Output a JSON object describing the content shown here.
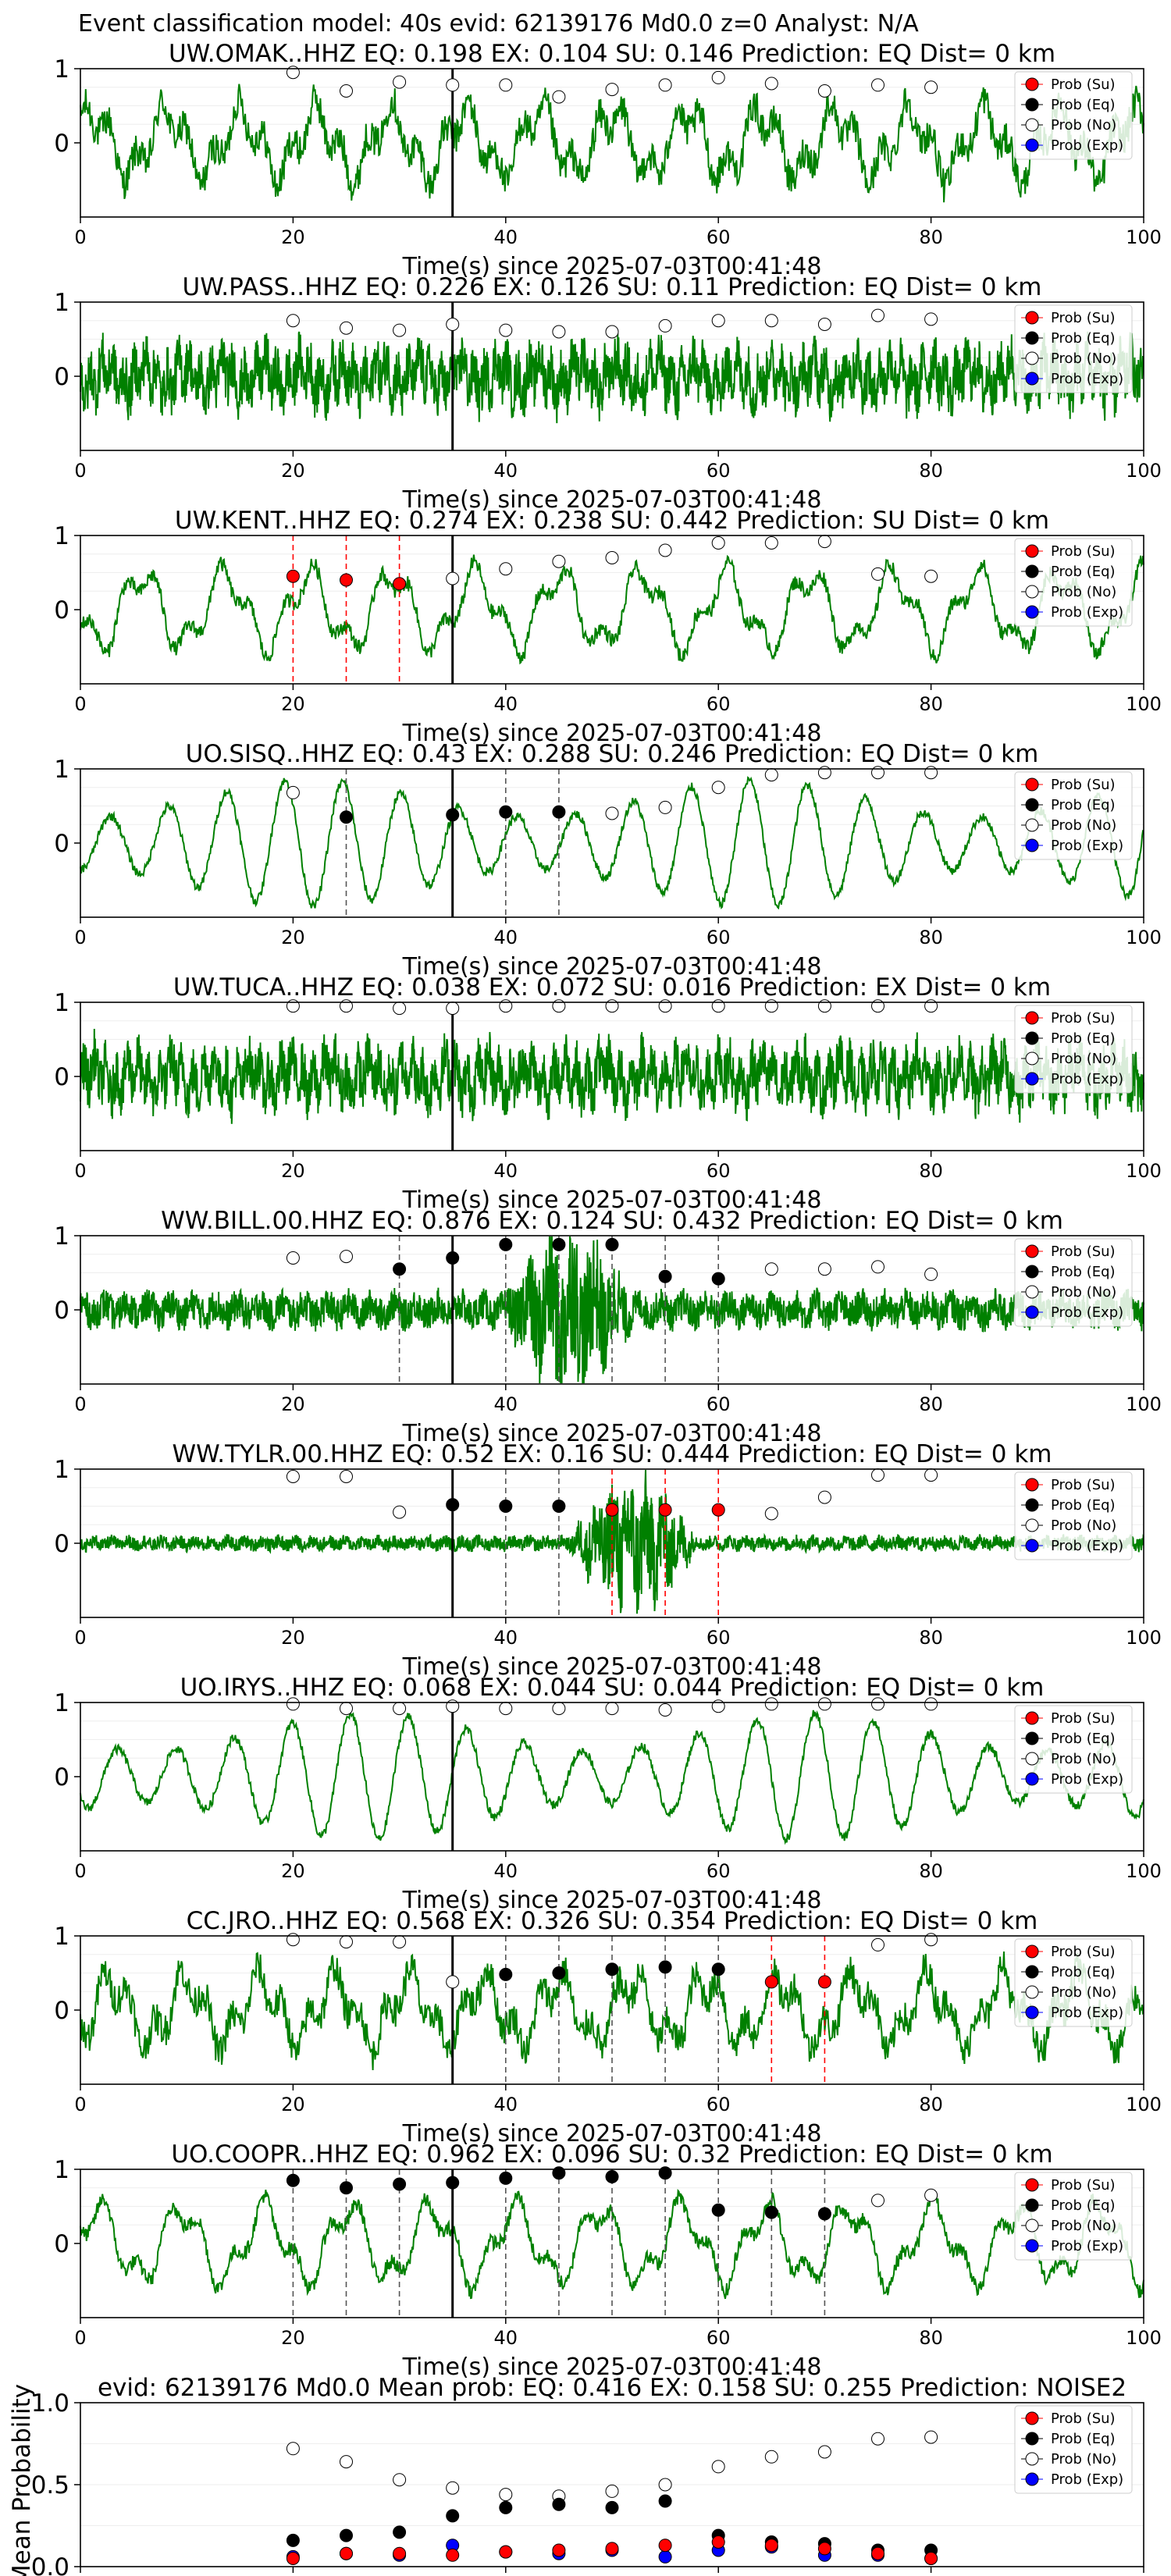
{
  "figure": {
    "title": "Event classification model: 40s evid: 62139176 Md0.0 z=0 Analyst: N/A",
    "x_axis_label": "Time(s) since 2025-07-03T00:41:48",
    "legend": [
      "Prob (Su)",
      "Prob (Eq)",
      "Prob (No)",
      "Prob (Exp)"
    ],
    "colors": {
      "trace": "#008000",
      "su": "#ff0000",
      "eq": "#000000",
      "no": "#ffffff",
      "exp": "#0000ff",
      "vline_eq": "#555555",
      "vline_su": "#ff0000"
    }
  },
  "chart_data": [
    {
      "type": "line",
      "station": "UW.OMAK..HHZ",
      "title": "UW.OMAK..HHZ   EQ: 0.198  EX: 0.104  SU: 0.146   Prediction: EQ    Dist= 0 km",
      "xlim": [
        0,
        100
      ],
      "ylim": [
        -1,
        1
      ],
      "xticks": [
        0,
        20,
        40,
        60,
        80,
        100
      ],
      "yticks": [
        0,
        1
      ],
      "trace_style": "noise",
      "arrival": 35,
      "windows": [
        {
          "x": 20,
          "cls": "no",
          "p": 0.95
        },
        {
          "x": 25,
          "cls": "no",
          "p": 0.7
        },
        {
          "x": 30,
          "cls": "no",
          "p": 0.82
        },
        {
          "x": 35,
          "cls": "no",
          "p": 0.78
        },
        {
          "x": 40,
          "cls": "no",
          "p": 0.78
        },
        {
          "x": 45,
          "cls": "no",
          "p": 0.62
        },
        {
          "x": 50,
          "cls": "no",
          "p": 0.72
        },
        {
          "x": 55,
          "cls": "no",
          "p": 0.78
        },
        {
          "x": 60,
          "cls": "no",
          "p": 0.88
        },
        {
          "x": 65,
          "cls": "no",
          "p": 0.8
        },
        {
          "x": 70,
          "cls": "no",
          "p": 0.7
        },
        {
          "x": 75,
          "cls": "no",
          "p": 0.78
        },
        {
          "x": 80,
          "cls": "no",
          "p": 0.75
        }
      ]
    },
    {
      "type": "line",
      "station": "UW.PASS..HHZ",
      "title": "UW.PASS..HHZ   EQ: 0.226  EX: 0.126  SU: 0.11   Prediction: EQ    Dist= 0 km",
      "xlim": [
        0,
        100
      ],
      "ylim": [
        -1,
        1
      ],
      "xticks": [
        0,
        20,
        40,
        60,
        80,
        100
      ],
      "yticks": [
        0,
        1
      ],
      "trace_style": "dense",
      "arrival": 35,
      "windows": [
        {
          "x": 20,
          "cls": "no",
          "p": 0.75
        },
        {
          "x": 25,
          "cls": "no",
          "p": 0.65
        },
        {
          "x": 30,
          "cls": "no",
          "p": 0.62
        },
        {
          "x": 35,
          "cls": "no",
          "p": 0.7
        },
        {
          "x": 40,
          "cls": "no",
          "p": 0.62
        },
        {
          "x": 45,
          "cls": "no",
          "p": 0.6
        },
        {
          "x": 50,
          "cls": "no",
          "p": 0.6
        },
        {
          "x": 55,
          "cls": "no",
          "p": 0.68
        },
        {
          "x": 60,
          "cls": "no",
          "p": 0.75
        },
        {
          "x": 65,
          "cls": "no",
          "p": 0.75
        },
        {
          "x": 70,
          "cls": "no",
          "p": 0.7
        },
        {
          "x": 75,
          "cls": "no",
          "p": 0.82
        },
        {
          "x": 80,
          "cls": "no",
          "p": 0.77
        }
      ]
    },
    {
      "type": "line",
      "station": "UW.KENT..HHZ",
      "title": "UW.KENT..HHZ   EQ: 0.274  EX: 0.238  SU: 0.442   Prediction: SU    Dist= 0 km",
      "xlim": [
        0,
        100
      ],
      "ylim": [
        -1,
        1
      ],
      "xticks": [
        0,
        20,
        40,
        60,
        80,
        100
      ],
      "yticks": [
        0,
        1
      ],
      "trace_style": "smooth",
      "arrival": 35,
      "windows": [
        {
          "x": 20,
          "cls": "su",
          "p": 0.45,
          "line": "su"
        },
        {
          "x": 25,
          "cls": "su",
          "p": 0.4,
          "line": "su"
        },
        {
          "x": 30,
          "cls": "su",
          "p": 0.35,
          "line": "su"
        },
        {
          "x": 35,
          "cls": "no",
          "p": 0.42
        },
        {
          "x": 40,
          "cls": "no",
          "p": 0.55
        },
        {
          "x": 45,
          "cls": "no",
          "p": 0.65
        },
        {
          "x": 50,
          "cls": "no",
          "p": 0.7
        },
        {
          "x": 55,
          "cls": "no",
          "p": 0.8
        },
        {
          "x": 60,
          "cls": "no",
          "p": 0.9
        },
        {
          "x": 65,
          "cls": "no",
          "p": 0.9
        },
        {
          "x": 70,
          "cls": "no",
          "p": 0.92
        },
        {
          "x": 75,
          "cls": "no",
          "p": 0.48
        },
        {
          "x": 80,
          "cls": "no",
          "p": 0.45
        }
      ]
    },
    {
      "type": "line",
      "station": "UO.SISQ..HHZ",
      "title": "UO.SISQ..HHZ   EQ: 0.43  EX: 0.288  SU: 0.246   Prediction: EQ    Dist= 0 km",
      "xlim": [
        0,
        100
      ],
      "ylim": [
        -1,
        1
      ],
      "xticks": [
        0,
        20,
        40,
        60,
        80,
        100
      ],
      "yticks": [
        0,
        1
      ],
      "trace_style": "wave",
      "arrival": 35,
      "windows": [
        {
          "x": 20,
          "cls": "no",
          "p": 0.68
        },
        {
          "x": 25,
          "cls": "eq",
          "p": 0.35,
          "line": "eq"
        },
        {
          "x": 35,
          "cls": "eq",
          "p": 0.38
        },
        {
          "x": 40,
          "cls": "eq",
          "p": 0.42,
          "line": "eq"
        },
        {
          "x": 45,
          "cls": "eq",
          "p": 0.42,
          "line": "eq"
        },
        {
          "x": 50,
          "cls": "no",
          "p": 0.4
        },
        {
          "x": 55,
          "cls": "no",
          "p": 0.48
        },
        {
          "x": 60,
          "cls": "no",
          "p": 0.75
        },
        {
          "x": 65,
          "cls": "no",
          "p": 0.92
        },
        {
          "x": 70,
          "cls": "no",
          "p": 0.95
        },
        {
          "x": 75,
          "cls": "no",
          "p": 0.95
        },
        {
          "x": 80,
          "cls": "no",
          "p": 0.95
        }
      ]
    },
    {
      "type": "line",
      "station": "UW.TUCA..HHZ",
      "title": "UW.TUCA..HHZ   EQ: 0.038  EX: 0.072  SU: 0.016   Prediction: EX    Dist= 0 km",
      "xlim": [
        0,
        100
      ],
      "ylim": [
        -1,
        1
      ],
      "xticks": [
        0,
        20,
        40,
        60,
        80,
        100
      ],
      "yticks": [
        0,
        1
      ],
      "trace_style": "dense",
      "arrival": 35,
      "windows": [
        {
          "x": 20,
          "cls": "no",
          "p": 0.95
        },
        {
          "x": 25,
          "cls": "no",
          "p": 0.95
        },
        {
          "x": 30,
          "cls": "no",
          "p": 0.92
        },
        {
          "x": 35,
          "cls": "no",
          "p": 0.92
        },
        {
          "x": 40,
          "cls": "no",
          "p": 0.95
        },
        {
          "x": 45,
          "cls": "no",
          "p": 0.95
        },
        {
          "x": 50,
          "cls": "no",
          "p": 0.95
        },
        {
          "x": 55,
          "cls": "no",
          "p": 0.95
        },
        {
          "x": 60,
          "cls": "no",
          "p": 0.95
        },
        {
          "x": 65,
          "cls": "no",
          "p": 0.95
        },
        {
          "x": 70,
          "cls": "no",
          "p": 0.95
        },
        {
          "x": 75,
          "cls": "no",
          "p": 0.95
        },
        {
          "x": 80,
          "cls": "no",
          "p": 0.95
        }
      ]
    },
    {
      "type": "line",
      "station": "WW.BILL.00.HHZ",
      "title": "WW.BILL.00.HHZ   EQ: 0.876  EX: 0.124  SU: 0.432   Prediction: EQ    Dist= 0 km",
      "xlim": [
        0,
        100
      ],
      "ylim": [
        -1,
        1
      ],
      "xticks": [
        0,
        20,
        40,
        60,
        80,
        100
      ],
      "yticks": [
        0,
        1
      ],
      "trace_style": "burst",
      "burst": [
        40,
        52
      ],
      "arrival": 35,
      "windows": [
        {
          "x": 20,
          "cls": "no",
          "p": 0.7
        },
        {
          "x": 25,
          "cls": "no",
          "p": 0.72
        },
        {
          "x": 30,
          "cls": "eq",
          "p": 0.55,
          "line": "eq"
        },
        {
          "x": 35,
          "cls": "eq",
          "p": 0.7
        },
        {
          "x": 40,
          "cls": "eq",
          "p": 0.88,
          "line": "eq"
        },
        {
          "x": 45,
          "cls": "eq",
          "p": 0.88,
          "line": "eq"
        },
        {
          "x": 50,
          "cls": "eq",
          "p": 0.88,
          "line": "eq"
        },
        {
          "x": 55,
          "cls": "eq",
          "p": 0.45,
          "line": "eq"
        },
        {
          "x": 60,
          "cls": "eq",
          "p": 0.42,
          "line": "eq"
        },
        {
          "x": 65,
          "cls": "no",
          "p": 0.55
        },
        {
          "x": 70,
          "cls": "no",
          "p": 0.55
        },
        {
          "x": 75,
          "cls": "no",
          "p": 0.58
        },
        {
          "x": 80,
          "cls": "no",
          "p": 0.48
        }
      ]
    },
    {
      "type": "line",
      "station": "WW.TYLR.00.HHZ",
      "title": "WW.TYLR.00.HHZ   EQ: 0.52  EX: 0.16  SU: 0.444   Prediction: EQ    Dist= 0 km",
      "xlim": [
        0,
        100
      ],
      "ylim": [
        -1,
        1
      ],
      "xticks": [
        0,
        20,
        40,
        60,
        80,
        100
      ],
      "yticks": [
        0,
        1
      ],
      "trace_style": "quietburst",
      "burst": [
        46,
        58
      ],
      "arrival": 35,
      "windows": [
        {
          "x": 20,
          "cls": "no",
          "p": 0.9
        },
        {
          "x": 25,
          "cls": "no",
          "p": 0.9
        },
        {
          "x": 30,
          "cls": "no",
          "p": 0.42
        },
        {
          "x": 35,
          "cls": "eq",
          "p": 0.52
        },
        {
          "x": 40,
          "cls": "eq",
          "p": 0.5,
          "line": "eq"
        },
        {
          "x": 45,
          "cls": "eq",
          "p": 0.5,
          "line": "eq"
        },
        {
          "x": 50,
          "cls": "su",
          "p": 0.45,
          "line": "su"
        },
        {
          "x": 55,
          "cls": "su",
          "p": 0.45,
          "line": "su"
        },
        {
          "x": 60,
          "cls": "su",
          "p": 0.45,
          "line": "su"
        },
        {
          "x": 65,
          "cls": "no",
          "p": 0.4
        },
        {
          "x": 70,
          "cls": "no",
          "p": 0.62
        },
        {
          "x": 75,
          "cls": "no",
          "p": 0.92
        },
        {
          "x": 80,
          "cls": "no",
          "p": 0.92
        }
      ]
    },
    {
      "type": "line",
      "station": "UO.IRYS..HHZ",
      "title": "UO.IRYS..HHZ   EQ: 0.068  EX: 0.044  SU: 0.044   Prediction: EQ    Dist= 0 km",
      "xlim": [
        0,
        100
      ],
      "ylim": [
        -1,
        1
      ],
      "xticks": [
        0,
        20,
        40,
        60,
        80,
        100
      ],
      "yticks": [
        0,
        1
      ],
      "trace_style": "wave",
      "arrival": 35,
      "windows": [
        {
          "x": 20,
          "cls": "no",
          "p": 0.98
        },
        {
          "x": 25,
          "cls": "no",
          "p": 0.92
        },
        {
          "x": 30,
          "cls": "no",
          "p": 0.92
        },
        {
          "x": 35,
          "cls": "no",
          "p": 0.95
        },
        {
          "x": 40,
          "cls": "no",
          "p": 0.92
        },
        {
          "x": 45,
          "cls": "no",
          "p": 0.92
        },
        {
          "x": 50,
          "cls": "no",
          "p": 0.92
        },
        {
          "x": 55,
          "cls": "no",
          "p": 0.9
        },
        {
          "x": 60,
          "cls": "no",
          "p": 0.95
        },
        {
          "x": 65,
          "cls": "no",
          "p": 0.98
        },
        {
          "x": 70,
          "cls": "no",
          "p": 0.98
        },
        {
          "x": 75,
          "cls": "no",
          "p": 0.98
        },
        {
          "x": 80,
          "cls": "no",
          "p": 0.98
        }
      ]
    },
    {
      "type": "line",
      "station": "CC.JRO..HHZ",
      "title": "CC.JRO..HHZ   EQ: 0.568  EX: 0.326  SU: 0.354   Prediction: EQ    Dist= 0 km",
      "xlim": [
        0,
        100
      ],
      "ylim": [
        -1,
        1
      ],
      "xticks": [
        0,
        20,
        40,
        60,
        80,
        100
      ],
      "yticks": [
        0,
        1
      ],
      "trace_style": "noise",
      "arrival": 35,
      "windows": [
        {
          "x": 20,
          "cls": "no",
          "p": 0.95
        },
        {
          "x": 25,
          "cls": "no",
          "p": 0.92
        },
        {
          "x": 30,
          "cls": "no",
          "p": 0.92
        },
        {
          "x": 35,
          "cls": "no",
          "p": 0.38
        },
        {
          "x": 40,
          "cls": "eq",
          "p": 0.48,
          "line": "eq"
        },
        {
          "x": 45,
          "cls": "eq",
          "p": 0.5,
          "line": "eq"
        },
        {
          "x": 50,
          "cls": "eq",
          "p": 0.55,
          "line": "eq"
        },
        {
          "x": 55,
          "cls": "eq",
          "p": 0.58,
          "line": "eq"
        },
        {
          "x": 60,
          "cls": "eq",
          "p": 0.55,
          "line": "eq"
        },
        {
          "x": 65,
          "cls": "su",
          "p": 0.38,
          "line": "su"
        },
        {
          "x": 70,
          "cls": "su",
          "p": 0.38,
          "line": "su"
        },
        {
          "x": 75,
          "cls": "no",
          "p": 0.88
        },
        {
          "x": 80,
          "cls": "no",
          "p": 0.95
        }
      ]
    },
    {
      "type": "line",
      "station": "UO.COOPR..HHZ",
      "title": "UO.COOPR..HHZ   EQ: 0.962  EX: 0.096  SU: 0.32   Prediction: EQ    Dist= 0 km",
      "xlim": [
        0,
        100
      ],
      "ylim": [
        -1,
        1
      ],
      "xticks": [
        0,
        20,
        40,
        60,
        80,
        100
      ],
      "yticks": [
        0,
        1
      ],
      "trace_style": "smooth",
      "arrival": 35,
      "windows": [
        {
          "x": 20,
          "cls": "eq",
          "p": 0.85,
          "line": "eq"
        },
        {
          "x": 25,
          "cls": "eq",
          "p": 0.75,
          "line": "eq"
        },
        {
          "x": 30,
          "cls": "eq",
          "p": 0.8,
          "line": "eq"
        },
        {
          "x": 35,
          "cls": "eq",
          "p": 0.82
        },
        {
          "x": 40,
          "cls": "eq",
          "p": 0.88,
          "line": "eq"
        },
        {
          "x": 45,
          "cls": "eq",
          "p": 0.95,
          "line": "eq"
        },
        {
          "x": 50,
          "cls": "eq",
          "p": 0.9,
          "line": "eq"
        },
        {
          "x": 55,
          "cls": "eq",
          "p": 0.95,
          "line": "eq"
        },
        {
          "x": 60,
          "cls": "eq",
          "p": 0.45,
          "line": "eq"
        },
        {
          "x": 65,
          "cls": "eq",
          "p": 0.42,
          "line": "eq"
        },
        {
          "x": 70,
          "cls": "eq",
          "p": 0.4,
          "line": "eq"
        },
        {
          "x": 75,
          "cls": "no",
          "p": 0.58
        },
        {
          "x": 80,
          "cls": "no",
          "p": 0.65
        }
      ]
    },
    {
      "type": "scatter",
      "station": "",
      "title": "evid: 62139176  Md0.0   Mean prob:   EQ: 0.416  EX: 0.158  SU: 0.255   Prediction: NOISE2",
      "ylabel": "Mean Probability",
      "xlim": [
        0,
        100
      ],
      "ylim": [
        0,
        1
      ],
      "xticks": [
        0,
        20,
        40,
        60,
        80,
        100
      ],
      "yticks": [
        0.0,
        0.5,
        1.0
      ],
      "x": [
        20,
        25,
        30,
        35,
        40,
        45,
        50,
        55,
        60,
        65,
        70,
        75,
        80
      ],
      "series": [
        {
          "name": "Prob (No)",
          "cls": "no",
          "values": [
            0.72,
            0.64,
            0.53,
            0.48,
            0.44,
            0.43,
            0.46,
            0.5,
            0.61,
            0.67,
            0.7,
            0.78,
            0.79
          ]
        },
        {
          "name": "Prob (Eq)",
          "cls": "eq",
          "values": [
            0.16,
            0.19,
            0.21,
            0.31,
            0.36,
            0.38,
            0.36,
            0.4,
            0.19,
            0.15,
            0.14,
            0.1,
            0.1
          ]
        },
        {
          "name": "Prob (Exp)",
          "cls": "exp",
          "values": [
            0.06,
            0.08,
            0.07,
            0.13,
            0.09,
            0.08,
            0.1,
            0.06,
            0.1,
            0.12,
            0.07,
            0.07,
            0.05
          ]
        },
        {
          "name": "Prob (Su)",
          "cls": "su",
          "values": [
            0.05,
            0.08,
            0.08,
            0.07,
            0.09,
            0.1,
            0.11,
            0.13,
            0.15,
            0.13,
            0.11,
            0.08,
            0.05
          ]
        }
      ]
    }
  ]
}
